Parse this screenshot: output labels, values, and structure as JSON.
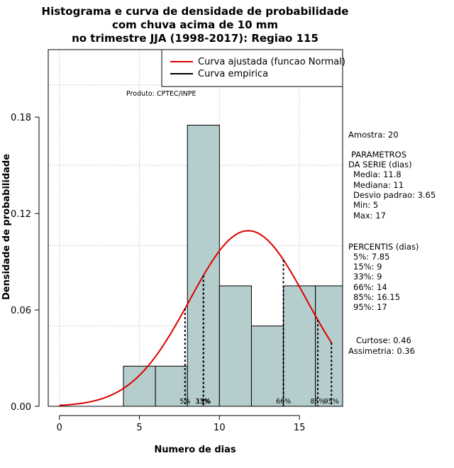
{
  "chart_data": {
    "type": "histogram",
    "title_lines": [
      "Histograma e curva de densidade de probabilidade",
      "com chuva acima de 10 mm",
      "no trimestre JJA (1998-2017): Regiao 115"
    ],
    "xlabel": "Numero de dias",
    "ylabel": "Densidade de probabilidade",
    "xlim": [
      -0.7,
      17.7
    ],
    "ylim": [
      0.0,
      0.222
    ],
    "x_ticks": [
      0,
      5,
      10,
      15
    ],
    "y_ticks": [
      0.0,
      0.06,
      0.12,
      0.18
    ],
    "y_tick_labels": [
      "0.00",
      "0.06",
      "0.12",
      "0.18"
    ],
    "x_grid": [
      0,
      5,
      10,
      15
    ],
    "y_grid": [
      0.0,
      0.05,
      0.1,
      0.15,
      0.2
    ],
    "bins": [
      {
        "x0": 4,
        "x1": 6,
        "density": 0.025
      },
      {
        "x0": 6,
        "x1": 8,
        "density": 0.025
      },
      {
        "x0": 8,
        "x1": 10,
        "density": 0.175
      },
      {
        "x0": 10,
        "x1": 12,
        "density": 0.075
      },
      {
        "x0": 12,
        "x1": 14,
        "density": 0.05
      },
      {
        "x0": 14,
        "x1": 16,
        "density": 0.075
      },
      {
        "x0": 16,
        "x1": 18,
        "density": 0.075
      }
    ],
    "fitted_curve": {
      "name": "Curva ajustada (funcao Normal)",
      "mean": 11.8,
      "sd": 3.65,
      "x_from": 0,
      "x_to": 17,
      "color": "#dd0000"
    },
    "empirical_curve": {
      "name": "Curva empirica",
      "color": "#000000"
    },
    "percentile_lines": [
      {
        "x": 7.85,
        "label": "5%"
      },
      {
        "x": 9,
        "label": "15%"
      },
      {
        "x": 9,
        "label": "33%"
      },
      {
        "x": 14,
        "label": "66%"
      },
      {
        "x": 16.15,
        "label": "85%"
      },
      {
        "x": 17,
        "label": "95%"
      }
    ],
    "bar_fill": "#b5cdcd",
    "legend_position": "top-right",
    "product_label": "Produto: CPTEC/INPE",
    "stats": {
      "sample": "Amostra: 20",
      "params_title_1": "PARAMETROS",
      "params_title_2": "DA SERIE (dias)",
      "params": [
        "Media: 11.8",
        "Mediana: 11",
        "Desvio padrao: 3.65",
        "Min: 5",
        "Max: 17"
      ],
      "percentis_title": "PERCENTIS (dias)",
      "percentis": [
        "5%: 7.85",
        "15%: 9",
        "33%: 9",
        "66%: 14",
        "85%: 16.15",
        "95%: 17"
      ],
      "curtose": "Curtose: 0.46",
      "assimetria": "Assimetria: 0.36"
    }
  }
}
